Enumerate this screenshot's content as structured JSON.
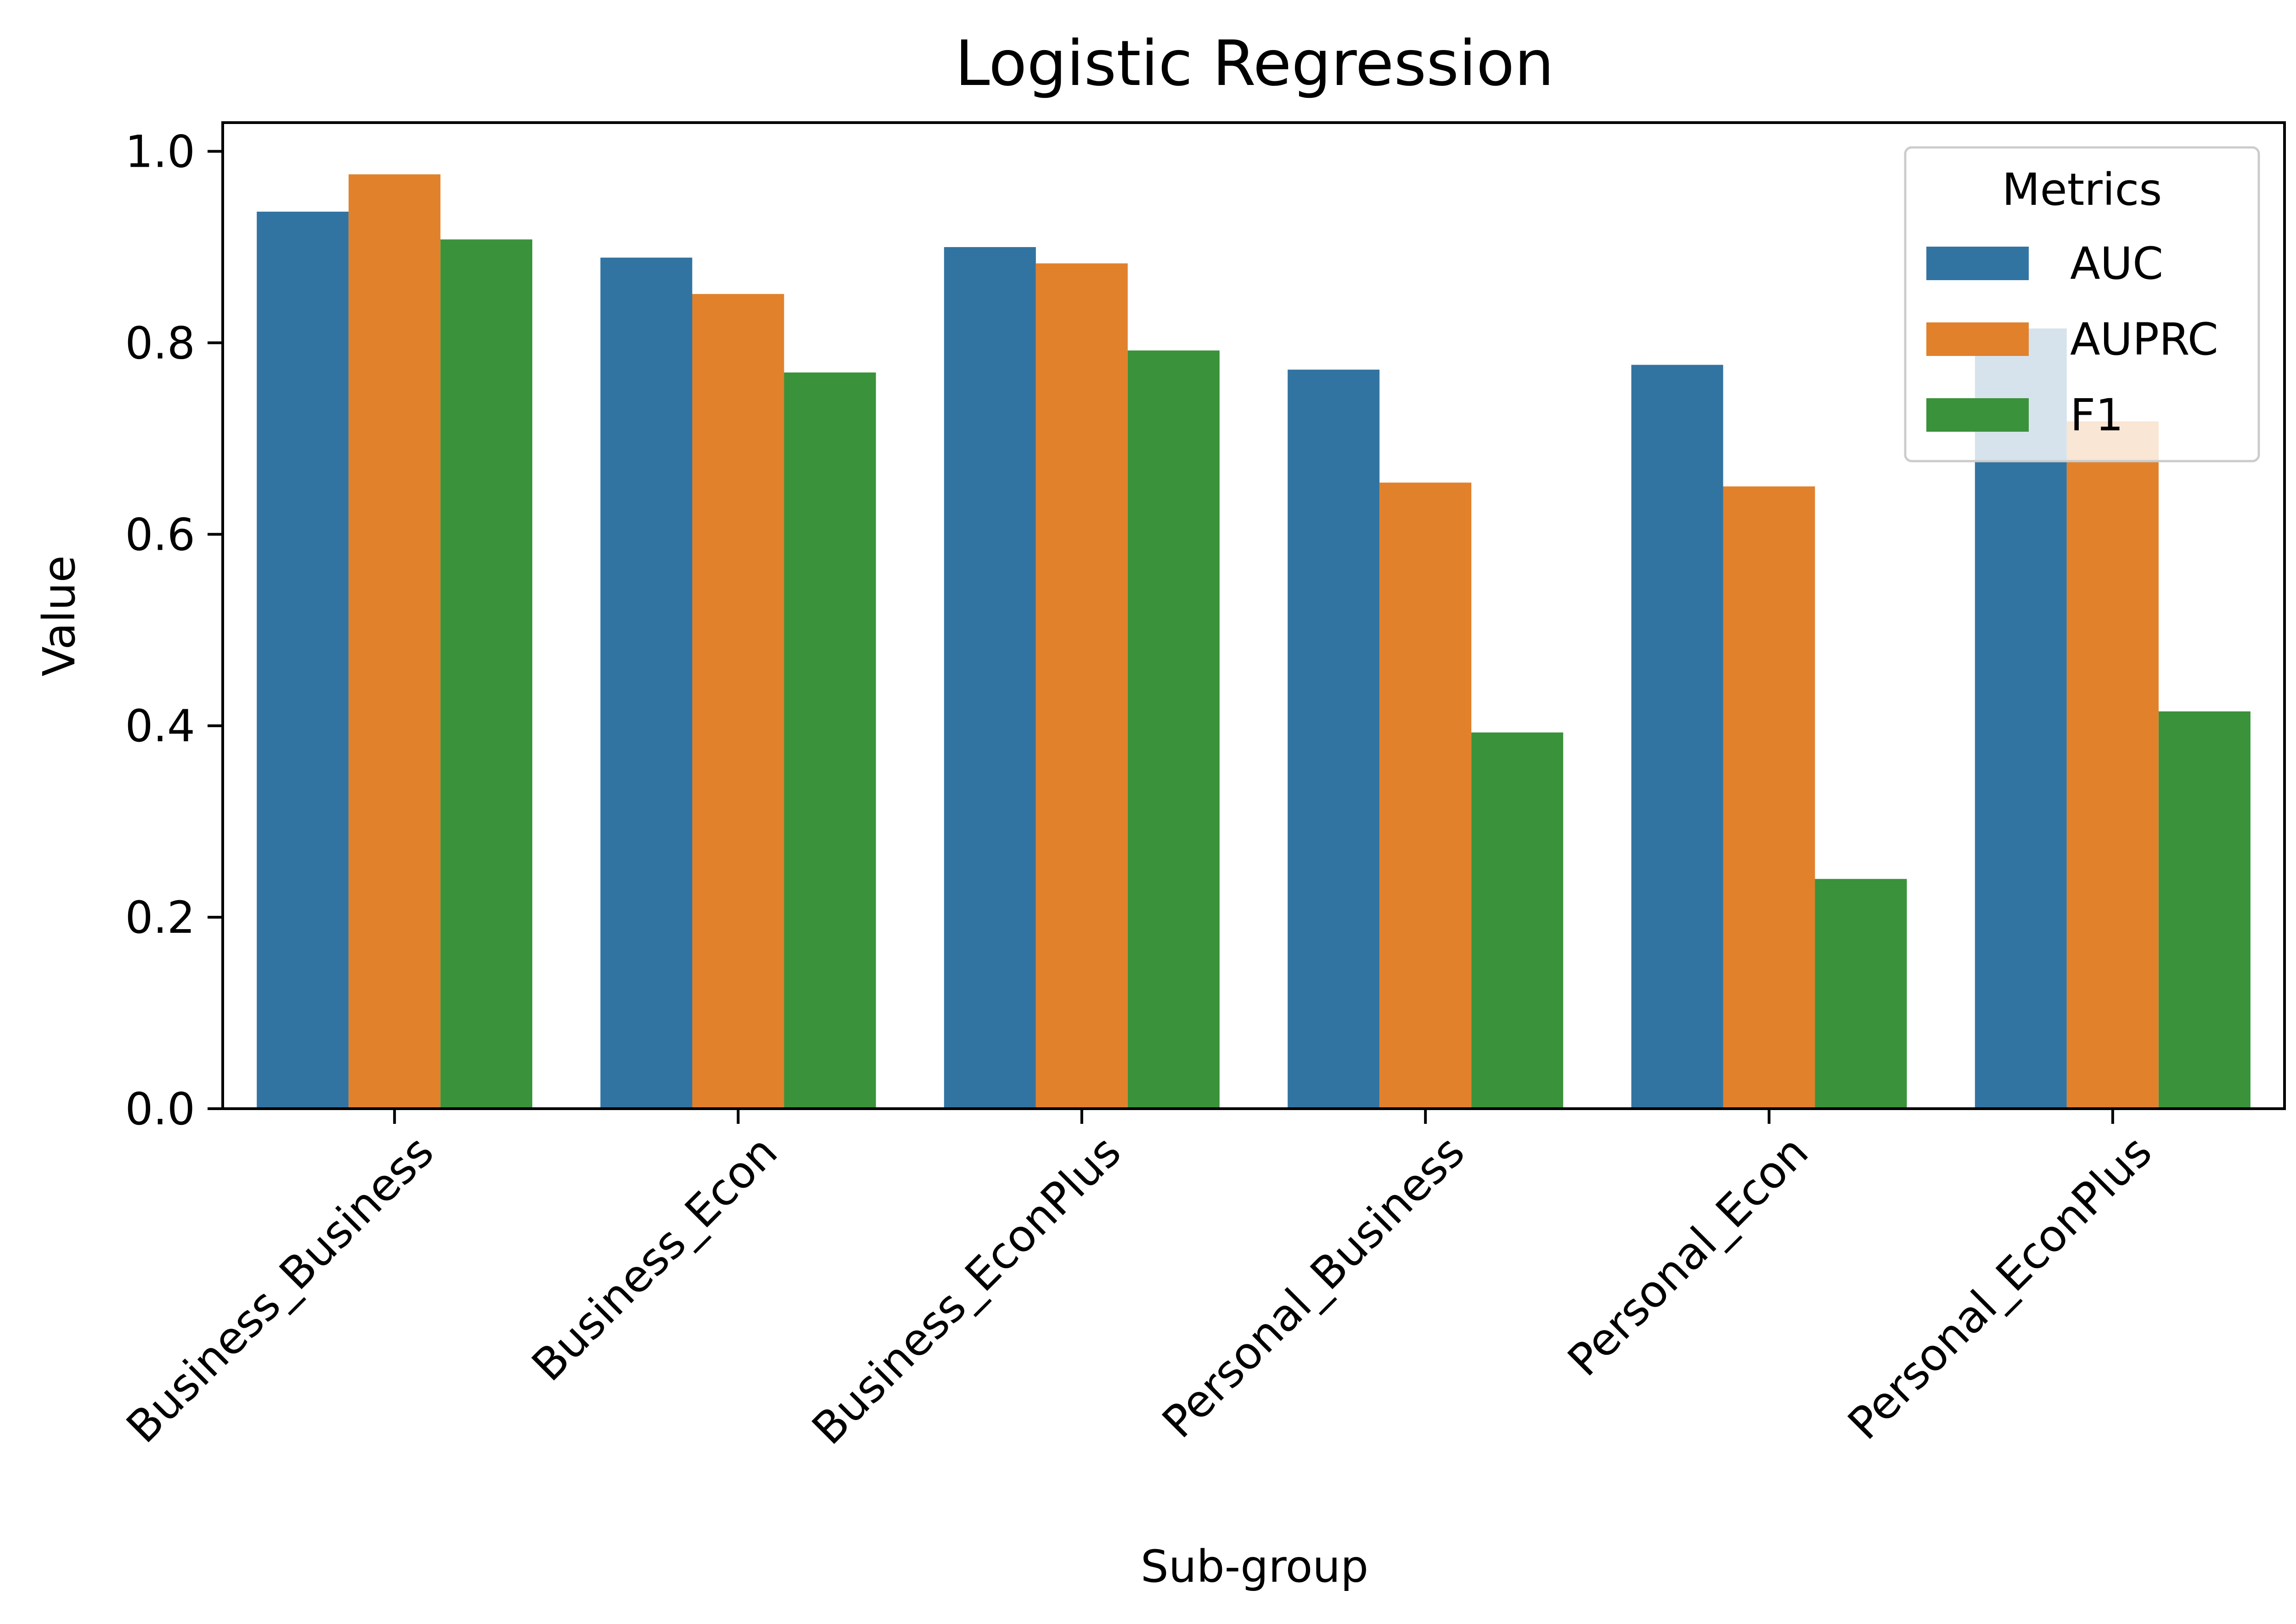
{
  "chart_data": {
    "type": "bar",
    "title": "Logistic Regression",
    "xlabel": "Sub-group",
    "ylabel": "Value",
    "categories": [
      "Business_Business",
      "Business_Econ",
      "Business_EconPlus",
      "Personal_Business",
      "Personal_Econ",
      "Personal_EconPlus"
    ],
    "series": [
      {
        "name": "AUC",
        "color": "#3274a1",
        "values": [
          0.937,
          0.889,
          0.9,
          0.772,
          0.777,
          0.815
        ]
      },
      {
        "name": "AUPRC",
        "color": "#e1812c",
        "values": [
          0.976,
          0.851,
          0.883,
          0.654,
          0.65,
          0.718
        ]
      },
      {
        "name": "F1",
        "color": "#3a923a",
        "values": [
          0.908,
          0.769,
          0.792,
          0.393,
          0.24,
          0.415
        ]
      }
    ],
    "ylim": [
      0,
      1.03
    ],
    "yticks": [
      "0.0",
      "0.2",
      "0.4",
      "0.6",
      "0.8",
      "1.0"
    ],
    "ytick_values": [
      0,
      0.2,
      0.4,
      0.6,
      0.8,
      1.0
    ],
    "legend": {
      "title": "Metrics",
      "position": "top-right"
    },
    "grid": false,
    "xtick_rotation": 45
  }
}
